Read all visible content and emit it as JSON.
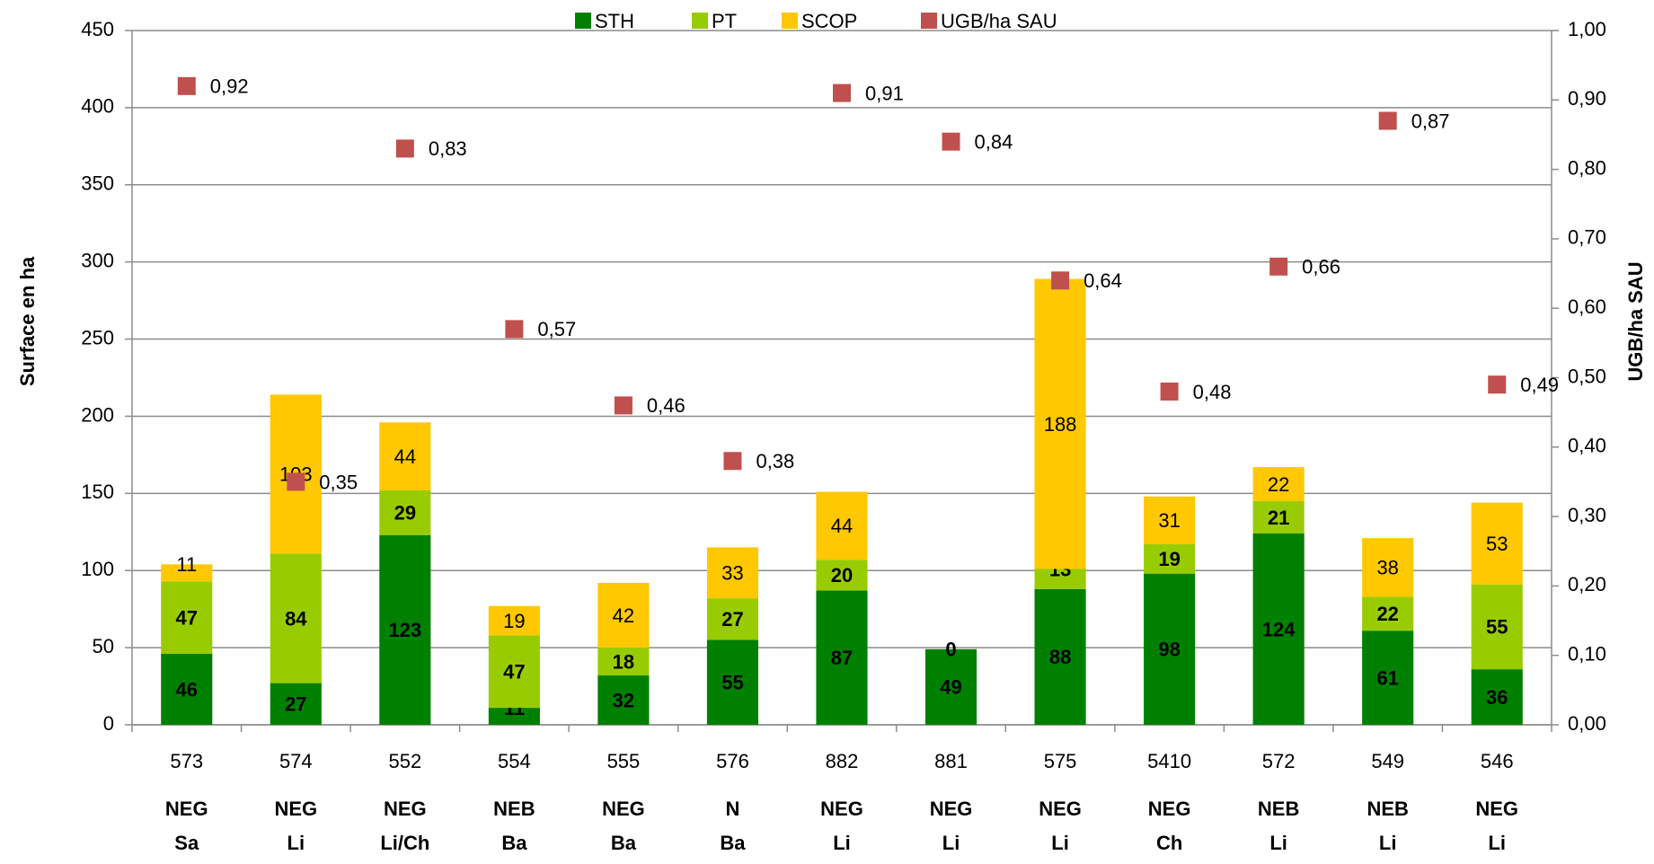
{
  "chart_data": {
    "type": "bar",
    "categories": [
      "573",
      "574",
      "552",
      "554",
      "555",
      "576",
      "882",
      "881",
      "575",
      "5410",
      "572",
      "549",
      "546"
    ],
    "groups": [
      [
        "NEG",
        "Sa"
      ],
      [
        "NEG",
        "Li"
      ],
      [
        "NEG",
        "Li/Ch"
      ],
      [
        "NEB",
        "Ba"
      ],
      [
        "NEG",
        "Ba"
      ],
      [
        "N",
        "Ba"
      ],
      [
        "NEG",
        "Li"
      ],
      [
        "NEG",
        "Li"
      ],
      [
        "NEG",
        "Li"
      ],
      [
        "NEG",
        "Ch"
      ],
      [
        "NEB",
        "Li"
      ],
      [
        "NEB",
        "Li"
      ],
      [
        "NEG",
        "Li"
      ]
    ],
    "stacked": true,
    "series": [
      {
        "name": "STH",
        "color": "#008000",
        "values": [
          46,
          27,
          123,
          11,
          32,
          55,
          87,
          49,
          88,
          98,
          124,
          61,
          36
        ]
      },
      {
        "name": "PT",
        "color": "#99cc00",
        "values": [
          47,
          84,
          29,
          47,
          18,
          27,
          20,
          0,
          13,
          19,
          21,
          22,
          55
        ]
      },
      {
        "name": "SCOP",
        "color": "#ffc800",
        "values": [
          11,
          103,
          44,
          19,
          42,
          33,
          44,
          null,
          188,
          31,
          22,
          38,
          53
        ]
      },
      {
        "name": "UGB/ha SAU",
        "color": "#c0504d",
        "type": "scatter",
        "axis": "y2",
        "values": [
          0.92,
          0.35,
          0.83,
          0.57,
          0.46,
          0.38,
          0.91,
          0.84,
          0.64,
          0.48,
          0.66,
          0.87,
          0.49
        ],
        "value_labels": [
          "0,92",
          "0,35",
          "0,83",
          "0,57",
          "0,46",
          "0,38",
          "0,91",
          "0,84",
          "0,64",
          "0,48",
          "0,66",
          "0,87",
          "0,49"
        ]
      }
    ],
    "ylabel": "Surface en ha",
    "y2label": "UGB/ha SAU",
    "ylim": [
      0,
      450
    ],
    "yticks": [
      0,
      50,
      100,
      150,
      200,
      250,
      300,
      350,
      400,
      450
    ],
    "y2lim": [
      0,
      1
    ],
    "y2ticks": [
      {
        "value": 0,
        "label": "0,00"
      },
      {
        "value": 0.1,
        "label": "0,10"
      },
      {
        "value": 0.2,
        "label": "0,20"
      },
      {
        "value": 0.3,
        "label": "0,30"
      },
      {
        "value": 0.4,
        "label": "0,40"
      },
      {
        "value": 0.5,
        "label": "0,50"
      },
      {
        "value": 0.6,
        "label": "0,60"
      },
      {
        "value": 0.7,
        "label": "0,70"
      },
      {
        "value": 0.8,
        "label": "0,80"
      },
      {
        "value": 0.9,
        "label": "0,90"
      },
      {
        "value": 1,
        "label": "1,00"
      }
    ],
    "grid": true,
    "legend": "top"
  }
}
